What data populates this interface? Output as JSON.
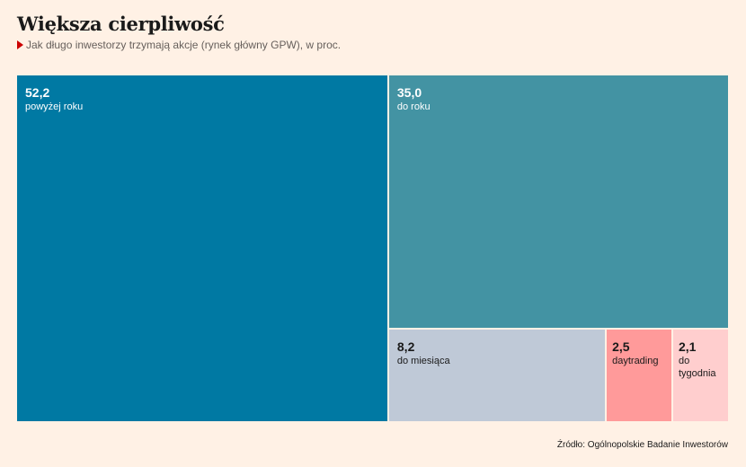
{
  "header": {
    "title": "Większa cierpliwość",
    "subtitle": "Jak długo inwestorzy trzymają akcje (rynek główny GPW), w proc."
  },
  "footer": {
    "source": "Źródło: Ogólnopolskie Badanie Inwestorów"
  },
  "colors": {
    "background": "#fff1e5",
    "powyzej_roku": "#0079a3",
    "do_roku": "#4393a3",
    "do_miesiaca": "#bfc9d7",
    "daytrading": "#ff9a9a",
    "do_tygodnia": "#ffcece"
  },
  "chart_data": {
    "type": "treemap",
    "title": "Większa cierpliwość",
    "subtitle": "Jak długo inwestorzy trzymają akcje (rynek główny GPW), w proc.",
    "items": [
      {
        "label": "powyżej roku",
        "value": 52.2,
        "display": "52,2",
        "color": "#0079a3",
        "text_color": "#ffffff"
      },
      {
        "label": "do roku",
        "value": 35.0,
        "display": "35,0",
        "color": "#4393a3",
        "text_color": "#ffffff"
      },
      {
        "label": "do miesiąca",
        "value": 8.2,
        "display": "8,2",
        "color": "#bfc9d7",
        "text_color": "#1a1a1a"
      },
      {
        "label": "daytrading",
        "value": 2.5,
        "display": "2,5",
        "color": "#ff9a9a",
        "text_color": "#1a1a1a"
      },
      {
        "label": "do tygodnia",
        "value": 2.1,
        "display": "2,1",
        "color": "#ffcece",
        "text_color": "#1a1a1a"
      }
    ]
  }
}
